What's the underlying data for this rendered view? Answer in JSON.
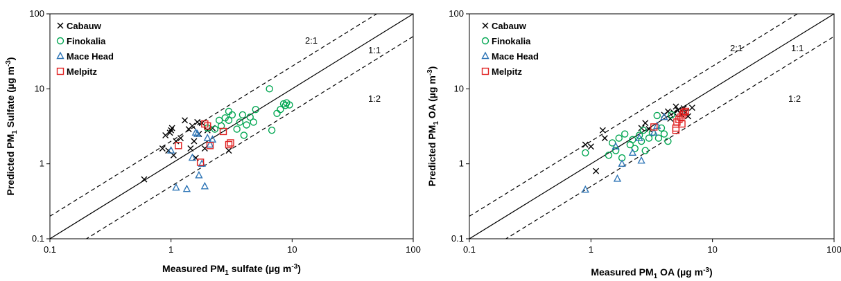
{
  "chart_data": [
    {
      "type": "scatter",
      "log_scale": true,
      "xlim": [
        0.1,
        100
      ],
      "ylim": [
        0.1,
        100
      ],
      "x_ticks": [
        "0.1",
        "1",
        "10",
        "100"
      ],
      "y_ticks": [
        "0.1",
        "1",
        "10",
        "100"
      ],
      "xlabel": {
        "pre": "Measured PM",
        "sub": "1",
        "mid": " sulfate (µg m",
        "sup": "-3",
        "post": ")"
      },
      "ylabel": {
        "pre": "Predicted PM",
        "sub": "1",
        "mid": " Sulfate (µg m",
        "sup": "-3",
        "post": ")"
      },
      "legend_position": "top-left",
      "reference_lines": [
        {
          "label": "2:1",
          "ratio": 2,
          "style": "dashed"
        },
        {
          "label": "1:1",
          "ratio": 1,
          "style": "solid"
        },
        {
          "label": "1:2",
          "ratio": 0.5,
          "style": "dashed"
        }
      ],
      "series": [
        {
          "name": "Cabauw",
          "marker": "x",
          "color": "#000000",
          "points": [
            [
              0.6,
              0.62
            ],
            [
              0.85,
              1.6
            ],
            [
              0.9,
              2.4
            ],
            [
              0.95,
              1.5
            ],
            [
              0.98,
              2.6
            ],
            [
              1.0,
              2.8
            ],
            [
              1.02,
              3.0
            ],
            [
              1.05,
              1.3
            ],
            [
              1.1,
              2.0
            ],
            [
              1.2,
              2.2
            ],
            [
              1.3,
              3.8
            ],
            [
              1.4,
              2.9
            ],
            [
              1.45,
              1.6
            ],
            [
              1.5,
              3.2
            ],
            [
              1.55,
              2.0
            ],
            [
              1.6,
              1.2
            ],
            [
              1.65,
              3.6
            ],
            [
              1.7,
              2.5
            ],
            [
              1.8,
              3.5
            ],
            [
              1.9,
              1.6
            ],
            [
              2.0,
              2.8
            ],
            [
              2.2,
              3.0
            ],
            [
              3.0,
              1.5
            ]
          ]
        },
        {
          "name": "Finokalia",
          "marker": "circle",
          "color": "#00a651",
          "points": [
            [
              2.0,
              3.0
            ],
            [
              2.3,
              2.9
            ],
            [
              2.5,
              3.8
            ],
            [
              2.6,
              3.2
            ],
            [
              2.8,
              4.1
            ],
            [
              3.0,
              5.0
            ],
            [
              3.0,
              3.8
            ],
            [
              3.2,
              4.5
            ],
            [
              3.5,
              2.9
            ],
            [
              3.7,
              3.6
            ],
            [
              3.9,
              4.5
            ],
            [
              4.0,
              2.4
            ],
            [
              4.2,
              3.3
            ],
            [
              4.5,
              4.2
            ],
            [
              4.8,
              3.6
            ],
            [
              5.0,
              5.3
            ],
            [
              6.5,
              10.0
            ],
            [
              6.8,
              2.8
            ],
            [
              7.5,
              4.7
            ],
            [
              8.0,
              5.3
            ],
            [
              8.5,
              6.3
            ],
            [
              8.8,
              6.0
            ],
            [
              9.0,
              6.5
            ],
            [
              9.5,
              6.1
            ]
          ]
        },
        {
          "name": "Mace Head",
          "marker": "triangle",
          "color": "#2e75b6",
          "points": [
            [
              1.0,
              1.5
            ],
            [
              1.1,
              0.48
            ],
            [
              1.35,
              0.46
            ],
            [
              1.5,
              1.2
            ],
            [
              1.6,
              2.6
            ],
            [
              1.65,
              2.5
            ],
            [
              1.7,
              0.7
            ],
            [
              1.8,
              1.0
            ],
            [
              1.9,
              0.5
            ],
            [
              2.0,
              2.2
            ],
            [
              2.1,
              1.8
            ],
            [
              2.2,
              2.1
            ]
          ]
        },
        {
          "name": "Melpitz",
          "marker": "square",
          "color": "#e02020",
          "points": [
            [
              1.15,
              1.75
            ],
            [
              1.75,
              1.05
            ],
            [
              1.9,
              3.4
            ],
            [
              2.0,
              3.2
            ],
            [
              2.1,
              1.75
            ],
            [
              2.7,
              2.7
            ],
            [
              3.0,
              1.8
            ],
            [
              3.1,
              1.9
            ]
          ]
        }
      ]
    },
    {
      "type": "scatter",
      "log_scale": true,
      "xlim": [
        0.1,
        100
      ],
      "ylim": [
        0.1,
        100
      ],
      "x_ticks": [
        "0.1",
        "1",
        "10",
        "100"
      ],
      "y_ticks": [
        "0.1",
        "1",
        "10",
        "100"
      ],
      "xlabel": {
        "pre": "Measured PM",
        "sub": "1",
        "mid": " OA (µg m",
        "sup": "-3",
        "post": ")"
      },
      "ylabel": {
        "pre": "Predicted PM",
        "sub": "1",
        "mid": " OA (µg m",
        "sup": "-3",
        "post": ")"
      },
      "legend_position": "top-left",
      "reference_lines": [
        {
          "label": "2:1",
          "ratio": 2,
          "style": "dashed"
        },
        {
          "label": "1:1",
          "ratio": 1,
          "style": "solid"
        },
        {
          "label": "1:2",
          "ratio": 0.5,
          "style": "dashed"
        }
      ],
      "series": [
        {
          "name": "Cabauw",
          "marker": "x",
          "color": "#000000",
          "points": [
            [
              0.9,
              1.8
            ],
            [
              1.0,
              1.7
            ],
            [
              1.1,
              0.8
            ],
            [
              1.25,
              2.8
            ],
            [
              1.3,
              2.2
            ],
            [
              2.6,
              3.0
            ],
            [
              2.8,
              3.5
            ],
            [
              3.0,
              2.9
            ],
            [
              4.0,
              4.5
            ],
            [
              4.3,
              5.0
            ],
            [
              4.5,
              4.0
            ],
            [
              4.8,
              4.8
            ],
            [
              5.0,
              5.8
            ],
            [
              5.2,
              5.2
            ],
            [
              5.5,
              4.6
            ],
            [
              5.8,
              5.5
            ],
            [
              6.0,
              4.9
            ],
            [
              6.3,
              4.3
            ],
            [
              6.8,
              5.6
            ]
          ]
        },
        {
          "name": "Finokalia",
          "marker": "circle",
          "color": "#00a651",
          "points": [
            [
              0.9,
              1.4
            ],
            [
              1.4,
              1.3
            ],
            [
              1.5,
              1.9
            ],
            [
              1.6,
              1.5
            ],
            [
              1.7,
              2.2
            ],
            [
              1.8,
              1.2
            ],
            [
              1.9,
              2.5
            ],
            [
              2.1,
              1.8
            ],
            [
              2.2,
              2.1
            ],
            [
              2.3,
              1.6
            ],
            [
              2.5,
              2.4
            ],
            [
              2.6,
              2.0
            ],
            [
              2.7,
              2.8
            ],
            [
              2.8,
              1.5
            ],
            [
              3.0,
              2.2
            ],
            [
              3.2,
              2.6
            ],
            [
              3.5,
              4.4
            ],
            [
              3.6,
              2.2
            ],
            [
              3.8,
              3.0
            ],
            [
              4.0,
              2.5
            ],
            [
              4.3,
              2.0
            ],
            [
              4.6,
              4.5
            ]
          ]
        },
        {
          "name": "Mace Head",
          "marker": "triangle",
          "color": "#2e75b6",
          "points": [
            [
              0.9,
              0.45
            ],
            [
              1.6,
              1.7
            ],
            [
              1.65,
              0.63
            ],
            [
              1.8,
              1.0
            ],
            [
              2.2,
              1.4
            ],
            [
              2.5,
              2.2
            ],
            [
              2.6,
              1.1
            ],
            [
              3.3,
              2.6
            ],
            [
              3.5,
              3.2
            ],
            [
              4.0,
              4.2
            ]
          ]
        },
        {
          "name": "Melpitz",
          "marker": "square",
          "color": "#e02020",
          "points": [
            [
              3.3,
              3.1
            ],
            [
              5.0,
              2.8
            ],
            [
              5.1,
              3.6
            ],
            [
              5.3,
              3.9
            ],
            [
              5.5,
              4.2
            ],
            [
              5.6,
              3.4
            ],
            [
              5.8,
              4.8
            ],
            [
              6.0,
              5.0
            ],
            [
              5.0,
              3.0
            ],
            [
              5.7,
              4.5
            ]
          ]
        }
      ]
    }
  ]
}
